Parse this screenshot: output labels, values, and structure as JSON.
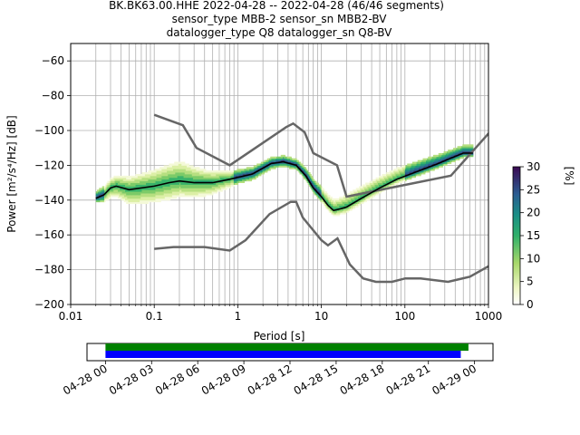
{
  "title": {
    "line1": "BK.BK63.00.HHE   2022-04-28 -- 2022-04-28  (46/46 segments)",
    "line2": "sensor_type MBB-2 sensor_sn MBB2-BV",
    "line3": "datalogger_type Q8 datalogger_sn Q8-BV"
  },
  "colorbar": {
    "label": "[%]",
    "ticks": [
      "0",
      "5",
      "10",
      "15",
      "20",
      "25",
      "30"
    ],
    "range": [
      0,
      30
    ]
  },
  "timeline": {
    "ticks": [
      "04-28 00",
      "04-28 03",
      "04-28 06",
      "04-28 09",
      "04-28 12",
      "04-28 15",
      "04-28 18",
      "04-28 21",
      "04-29 00"
    ],
    "bars": [
      {
        "color": "#008000",
        "start_h": 0.0,
        "end_h": 23.6
      },
      {
        "color": "#0000ff",
        "start_h": 0.0,
        "end_h": 23.1
      }
    ],
    "range_h": [
      -1.2,
      25.2
    ]
  },
  "chart_data": {
    "type": "ppsd",
    "xlabel": "Period [s]",
    "ylabel": "Power [m²/s⁴/Hz] [dB]",
    "xscale": "log",
    "xlim": [
      0.01,
      1000
    ],
    "ylim": [
      -200,
      -50
    ],
    "xticks": [
      {
        "v": 0.01,
        "label": "0.01"
      },
      {
        "v": 0.1,
        "label": "0.1"
      },
      {
        "v": 1,
        "label": "1"
      },
      {
        "v": 10,
        "label": "10"
      },
      {
        "v": 100,
        "label": "100"
      },
      {
        "v": 1000,
        "label": "1000"
      }
    ],
    "yticks": [
      {
        "v": -60,
        "label": "−60"
      },
      {
        "v": -80,
        "label": "−80"
      },
      {
        "v": -100,
        "label": "−100"
      },
      {
        "v": -120,
        "label": "−120"
      },
      {
        "v": -140,
        "label": "−140"
      },
      {
        "v": -160,
        "label": "−160"
      },
      {
        "v": -180,
        "label": "−180"
      },
      {
        "v": -200,
        "label": "−200"
      }
    ],
    "grid": true,
    "nhnm": [
      [
        0.1,
        -91
      ],
      [
        0.22,
        -97
      ],
      [
        0.32,
        -110
      ],
      [
        0.8,
        -120
      ],
      [
        3.8,
        -98
      ],
      [
        4.6,
        -96
      ],
      [
        6.3,
        -101
      ],
      [
        8,
        -113
      ],
      [
        15.4,
        -120
      ],
      [
        20,
        -138
      ],
      [
        354.8,
        -126
      ],
      [
        10000,
        -48
      ]
    ],
    "nlnm": [
      [
        0.1,
        -168
      ],
      [
        0.17,
        -167
      ],
      [
        0.4,
        -167
      ],
      [
        0.8,
        -169
      ],
      [
        1.24,
        -163
      ],
      [
        2.4,
        -148
      ],
      [
        4.3,
        -141
      ],
      [
        5,
        -141
      ],
      [
        6,
        -150
      ],
      [
        10,
        -163
      ],
      [
        12,
        -166
      ],
      [
        15.6,
        -162
      ],
      [
        21.9,
        -177
      ],
      [
        31.6,
        -185
      ],
      [
        45,
        -187
      ],
      [
        70,
        -187
      ],
      [
        101,
        -185
      ],
      [
        154,
        -185
      ],
      [
        328,
        -187
      ],
      [
        600,
        -184
      ],
      [
        1000,
        -178
      ]
    ],
    "mean": [
      [
        0.02,
        -139
      ],
      [
        0.025,
        -137
      ],
      [
        0.03,
        -133
      ],
      [
        0.035,
        -132
      ],
      [
        0.05,
        -134
      ],
      [
        0.1,
        -132
      ],
      [
        0.15,
        -130
      ],
      [
        0.2,
        -129
      ],
      [
        0.3,
        -130
      ],
      [
        0.5,
        -130
      ],
      [
        0.8,
        -128
      ],
      [
        1.5,
        -125
      ],
      [
        2.5,
        -119
      ],
      [
        3.5,
        -118
      ],
      [
        5,
        -120
      ],
      [
        6.5,
        -126
      ],
      [
        8,
        -133
      ],
      [
        10,
        -138
      ],
      [
        12,
        -143
      ],
      [
        14,
        -146
      ],
      [
        17,
        -145
      ],
      [
        20,
        -144
      ],
      [
        30,
        -139
      ],
      [
        50,
        -133
      ],
      [
        80,
        -128
      ],
      [
        150,
        -123
      ],
      [
        250,
        -119
      ],
      [
        350,
        -116
      ],
      [
        500,
        -113
      ],
      [
        650,
        -113
      ]
    ],
    "band_lower_offset": [
      [
        0.02,
        2
      ],
      [
        0.05,
        8
      ],
      [
        0.15,
        9
      ],
      [
        0.4,
        7
      ],
      [
        1,
        3
      ],
      [
        5,
        2
      ],
      [
        10,
        3
      ],
      [
        100,
        2
      ],
      [
        650,
        2
      ]
    ],
    "band_upper_offset": [
      [
        0.02,
        3
      ],
      [
        0.05,
        6
      ],
      [
        0.2,
        10
      ],
      [
        0.4,
        6
      ],
      [
        1,
        3
      ],
      [
        5,
        2
      ],
      [
        10,
        4
      ],
      [
        20,
        6
      ],
      [
        100,
        5
      ],
      [
        650,
        3
      ]
    ]
  }
}
